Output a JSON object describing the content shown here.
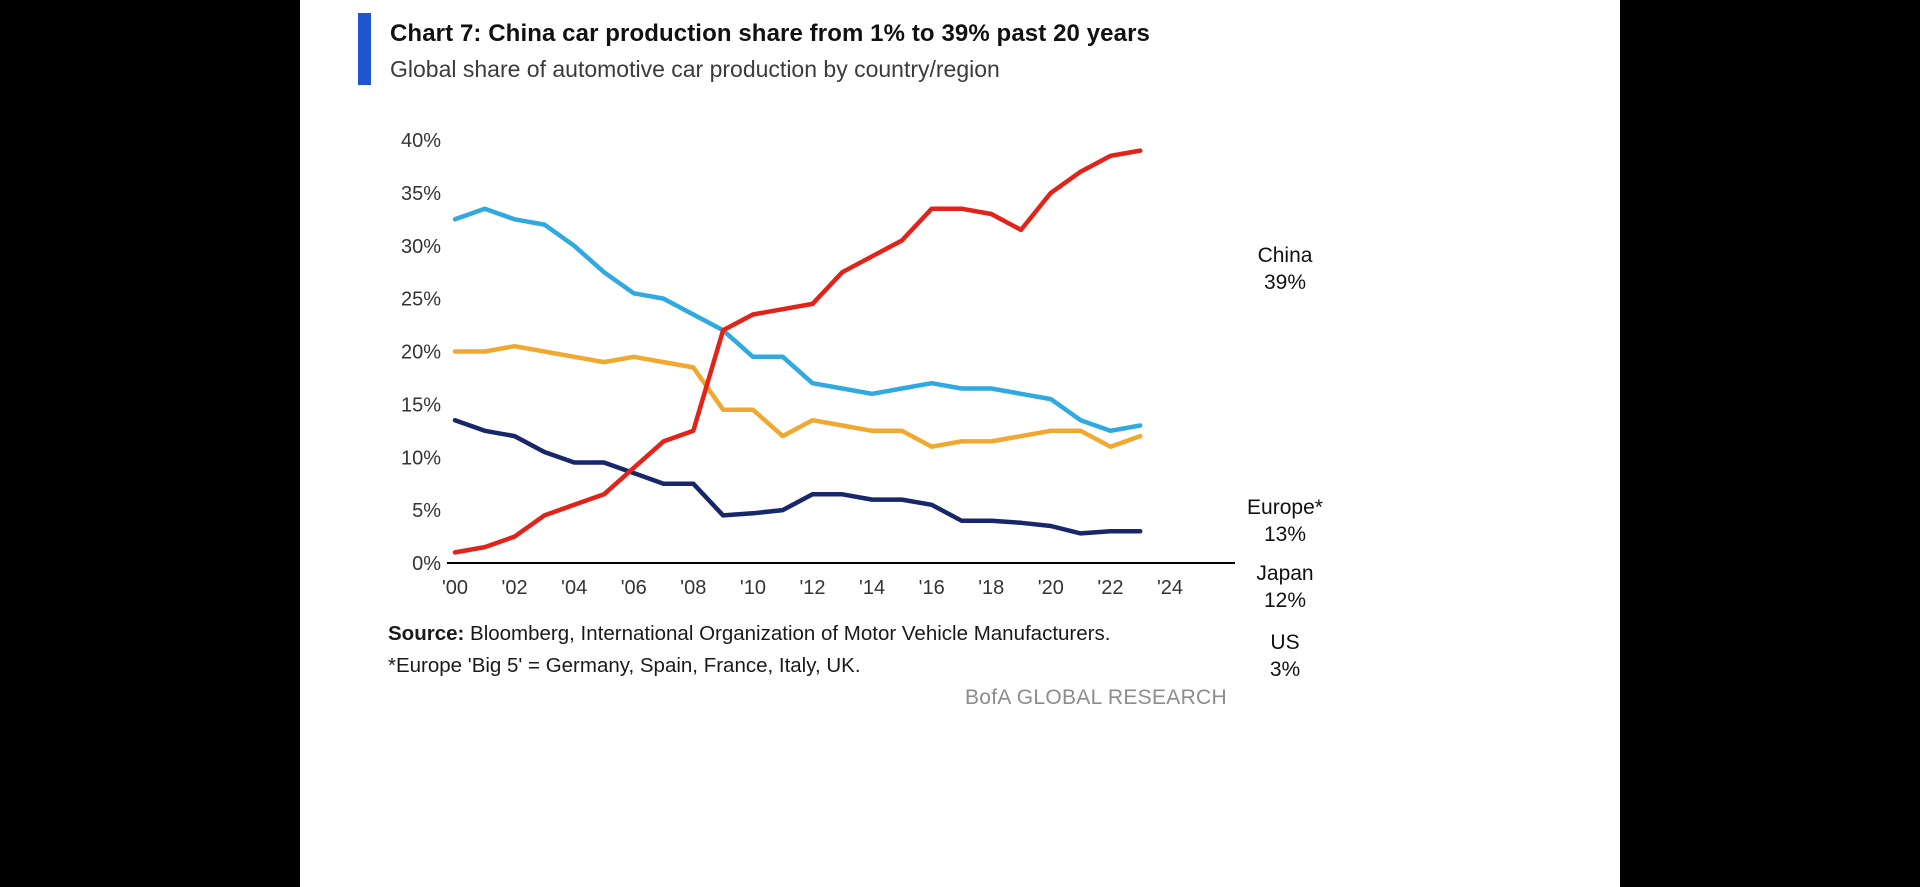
{
  "header": {
    "title": "Chart 7: China car production share from 1% to 39% past 20 years",
    "subtitle": "Global share of automotive car production by country/region",
    "accent_color": "#1f55d0"
  },
  "chart_data": {
    "type": "line",
    "title": "Global share of automotive car production by country/region",
    "xlabel": "",
    "ylabel": "",
    "ylim": [
      0,
      40
    ],
    "xlim": [
      2000,
      2024
    ],
    "grid": false,
    "legend_position": "right-end-labels",
    "x": [
      2000,
      2001,
      2002,
      2003,
      2004,
      2005,
      2006,
      2007,
      2008,
      2009,
      2010,
      2011,
      2012,
      2013,
      2014,
      2015,
      2016,
      2017,
      2018,
      2019,
      2020,
      2021,
      2022,
      2023
    ],
    "xticks": [
      "'00",
      "'02",
      "'04",
      "'06",
      "'08",
      "'10",
      "'12",
      "'14",
      "'16",
      "'18",
      "'20",
      "'22",
      "'24"
    ],
    "yticks": [
      "0%",
      "5%",
      "10%",
      "15%",
      "20%",
      "25%",
      "30%",
      "35%",
      "40%"
    ],
    "series": [
      {
        "name": "China",
        "end_label": "39%",
        "color": "#e2231a",
        "values": [
          1,
          1.5,
          2.5,
          4.5,
          5.5,
          6.5,
          9,
          11.5,
          12.5,
          22,
          23.5,
          24,
          24.5,
          27.5,
          29,
          30.5,
          33.5,
          33.5,
          33,
          31.5,
          35,
          37,
          38.5,
          39
        ]
      },
      {
        "name": "Europe*",
        "end_label": "13%",
        "color": "#2fa9e0",
        "values": [
          32.5,
          33.5,
          32.5,
          32,
          30,
          27.5,
          25.5,
          25,
          23.5,
          22,
          19.5,
          19.5,
          17,
          16.5,
          16,
          16.5,
          17,
          16.5,
          16.5,
          16,
          15.5,
          13.5,
          12.5,
          13
        ]
      },
      {
        "name": "Japan",
        "end_label": "12%",
        "color": "#f0a830",
        "values": [
          20,
          20,
          20.5,
          20,
          19.5,
          19,
          19.5,
          19,
          18.5,
          14.5,
          14.5,
          12,
          13.5,
          13,
          12.5,
          12.5,
          11,
          11.5,
          11.5,
          12,
          12.5,
          12.5,
          11,
          12
        ]
      },
      {
        "name": "US",
        "end_label": "3%",
        "color": "#18266b",
        "values": [
          13.5,
          12.5,
          12,
          10.5,
          9.5,
          9.5,
          8.5,
          7.5,
          7.5,
          4.5,
          4.7,
          5,
          6.5,
          6.5,
          6,
          6,
          5.5,
          4,
          4,
          3.8,
          3.5,
          2.8,
          3,
          3
        ]
      }
    ]
  },
  "footer": {
    "source_label": "Source:",
    "source_text": " Bloomberg, International Organization of Motor Vehicle Manufacturers. *Europe 'Big 5' = Germany, Spain, France, Italy, UK.",
    "brand": "BofA GLOBAL RESEARCH"
  }
}
